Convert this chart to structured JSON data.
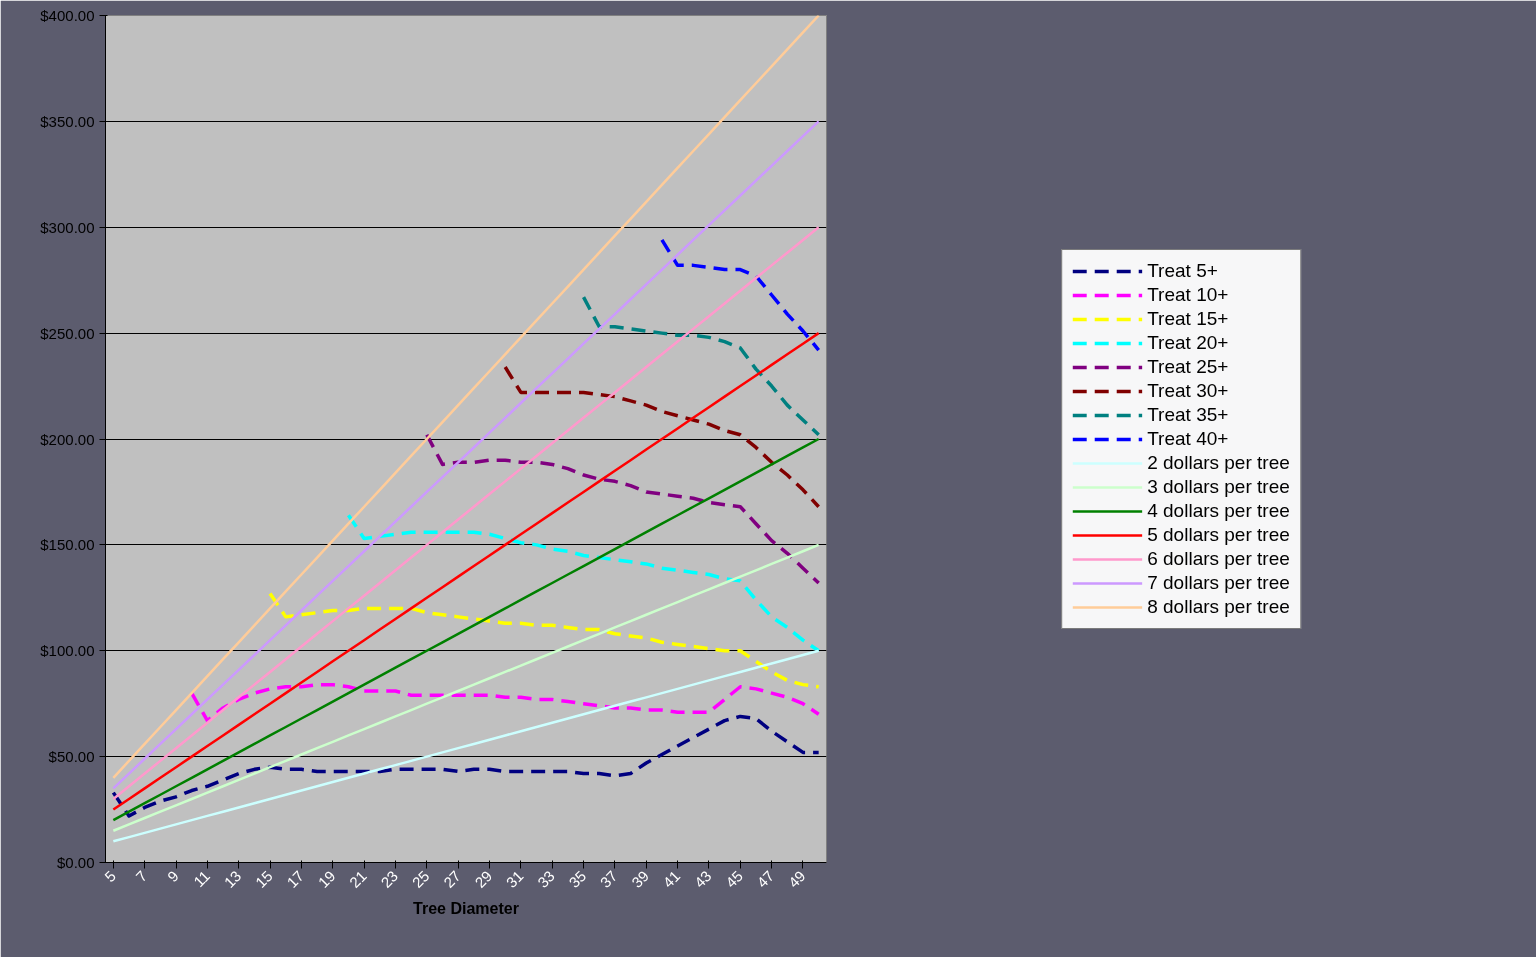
{
  "chart_data": {
    "type": "line",
    "xlabel": "Tree Diameter",
    "categories": [
      "5",
      null,
      "7",
      null,
      "9",
      null,
      "11",
      null,
      "13",
      null,
      "15",
      null,
      "17",
      null,
      "19",
      null,
      "21",
      null,
      "23",
      null,
      "25",
      null,
      "27",
      null,
      "29",
      null,
      "31",
      null,
      "33",
      null,
      "35",
      null,
      "37",
      null,
      "39",
      null,
      "41",
      null,
      "43",
      null,
      "45",
      null,
      "47",
      null,
      "49",
      null
    ],
    "ylim": [
      0,
      400
    ],
    "yticks": [
      {
        "value": 0,
        "label": "$0.00"
      },
      {
        "value": 50,
        "label": "$50.00"
      },
      {
        "value": 100,
        "label": "$100.00"
      },
      {
        "value": 150,
        "label": "$150.00"
      },
      {
        "value": 200,
        "label": "$200.00"
      },
      {
        "value": 250,
        "label": "$250.00"
      },
      {
        "value": 300,
        "label": "$300.00"
      },
      {
        "value": 350,
        "label": "$350.00"
      },
      {
        "value": 400,
        "label": "$400.00"
      }
    ],
    "grid": "y",
    "legend": "right",
    "marker": "none",
    "series": [
      {
        "name": "Treat 5+",
        "color": "#000080",
        "line_style": "dashed",
        "values": [
          33,
          22,
          26,
          29,
          31,
          34,
          36,
          39,
          42,
          44,
          45,
          44,
          44,
          43,
          43,
          43,
          43,
          43,
          44,
          44,
          44,
          44,
          43,
          44,
          44,
          43,
          43,
          43,
          43,
          43,
          42,
          42,
          41,
          42,
          47,
          51,
          55,
          59,
          63,
          67,
          69,
          68,
          62,
          57,
          52,
          52
        ]
      },
      {
        "name": "Treat 10+",
        "color": "#ff00ff",
        "line_style": "dashed",
        "values": [
          null,
          null,
          null,
          null,
          null,
          80,
          67,
          73,
          77,
          80,
          82,
          83,
          83,
          84,
          84,
          83,
          81,
          81,
          81,
          79,
          79,
          79,
          79,
          79,
          79,
          78,
          78,
          77,
          77,
          76,
          75,
          74,
          73,
          73,
          72,
          72,
          71,
          71,
          71,
          77,
          83,
          82,
          80,
          78,
          75,
          70
        ]
      },
      {
        "name": "Treat 15+",
        "color": "#ffff00",
        "line_style": "dashed",
        "values": [
          null,
          null,
          null,
          null,
          null,
          null,
          null,
          null,
          null,
          null,
          127,
          116,
          117,
          118,
          119,
          119,
          120,
          120,
          120,
          120,
          118,
          117,
          116,
          115,
          114,
          113,
          113,
          112,
          112,
          111,
          110,
          110,
          108,
          107,
          106,
          104,
          103,
          102,
          101,
          100,
          100,
          95,
          90,
          86,
          84,
          83
        ]
      },
      {
        "name": "Treat 20+",
        "color": "#00ffff",
        "line_style": "dashed",
        "values": [
          null,
          null,
          null,
          null,
          null,
          null,
          null,
          null,
          null,
          null,
          null,
          null,
          null,
          null,
          null,
          164,
          153,
          154,
          155,
          156,
          156,
          156,
          156,
          156,
          155,
          153,
          151,
          150,
          148,
          147,
          145,
          144,
          143,
          142,
          141,
          139,
          138,
          137,
          136,
          134,
          133,
          124,
          116,
          111,
          105,
          100
        ]
      },
      {
        "name": "Treat 25+",
        "color": "#800080",
        "line_style": "dashed",
        "values": [
          null,
          null,
          null,
          null,
          null,
          null,
          null,
          null,
          null,
          null,
          null,
          null,
          null,
          null,
          null,
          null,
          null,
          null,
          null,
          null,
          202,
          188,
          189,
          189,
          190,
          190,
          189,
          189,
          188,
          186,
          183,
          181,
          180,
          178,
          175,
          174,
          173,
          172,
          170,
          169,
          168,
          160,
          152,
          146,
          139,
          132
        ]
      },
      {
        "name": "Treat 30+",
        "color": "#800000",
        "line_style": "dashed",
        "values": [
          null,
          null,
          null,
          null,
          null,
          null,
          null,
          null,
          null,
          null,
          null,
          null,
          null,
          null,
          null,
          null,
          null,
          null,
          null,
          null,
          null,
          null,
          null,
          null,
          null,
          234,
          222,
          222,
          222,
          222,
          222,
          221,
          220,
          218,
          216,
          213,
          211,
          209,
          207,
          204,
          202,
          196,
          189,
          183,
          176,
          168
        ]
      },
      {
        "name": "Treat 35+",
        "color": "#008080",
        "line_style": "dashed",
        "values": [
          null,
          null,
          null,
          null,
          null,
          null,
          null,
          null,
          null,
          null,
          null,
          null,
          null,
          null,
          null,
          null,
          null,
          null,
          null,
          null,
          null,
          null,
          null,
          null,
          null,
          null,
          null,
          null,
          null,
          null,
          267,
          253,
          253,
          252,
          251,
          250,
          249,
          249,
          248,
          246,
          243,
          233,
          225,
          216,
          209,
          202
        ]
      },
      {
        "name": "Treat 40+",
        "color": "#0000ff",
        "line_style": "dashed",
        "values": [
          null,
          null,
          null,
          null,
          null,
          null,
          null,
          null,
          null,
          null,
          null,
          null,
          null,
          null,
          null,
          null,
          null,
          null,
          null,
          null,
          null,
          null,
          null,
          null,
          null,
          null,
          null,
          null,
          null,
          null,
          null,
          null,
          null,
          null,
          null,
          294,
          282,
          282,
          281,
          280,
          280,
          277,
          268,
          259,
          251,
          242
        ]
      },
      {
        "name": "2 dollars per tree",
        "color": "#ccffff",
        "line_style": "solid",
        "values": [
          10,
          12,
          14,
          16,
          18,
          20,
          22,
          24,
          26,
          28,
          30,
          32,
          34,
          36,
          38,
          40,
          42,
          44,
          46,
          48,
          50,
          52,
          54,
          56,
          58,
          60,
          62,
          64,
          66,
          68,
          70,
          72,
          74,
          76,
          78,
          80,
          82,
          84,
          86,
          88,
          90,
          92,
          94,
          96,
          98,
          100
        ]
      },
      {
        "name": "3 dollars per tree",
        "color": "#ccffcc",
        "line_style": "solid",
        "values": [
          15,
          18,
          21,
          24,
          27,
          30,
          33,
          36,
          39,
          42,
          45,
          48,
          51,
          54,
          57,
          60,
          63,
          66,
          69,
          72,
          75,
          78,
          81,
          84,
          87,
          90,
          93,
          96,
          99,
          102,
          105,
          108,
          111,
          114,
          117,
          120,
          123,
          126,
          129,
          132,
          135,
          138,
          141,
          144,
          147,
          150
        ]
      },
      {
        "name": "4 dollars per tree",
        "color": "#008000",
        "line_style": "solid",
        "values": [
          20,
          24,
          28,
          32,
          36,
          40,
          44,
          48,
          52,
          56,
          60,
          64,
          68,
          72,
          76,
          80,
          84,
          88,
          92,
          96,
          100,
          104,
          108,
          112,
          116,
          120,
          124,
          128,
          132,
          136,
          140,
          144,
          148,
          152,
          156,
          160,
          164,
          168,
          172,
          176,
          180,
          184,
          188,
          192,
          196,
          200
        ]
      },
      {
        "name": "5 dollars per tree",
        "color": "#ff0000",
        "line_style": "solid",
        "values": [
          25,
          30,
          35,
          40,
          45,
          50,
          55,
          60,
          65,
          70,
          75,
          80,
          85,
          90,
          95,
          100,
          105,
          110,
          115,
          120,
          125,
          130,
          135,
          140,
          145,
          150,
          155,
          160,
          165,
          170,
          175,
          180,
          185,
          190,
          195,
          200,
          205,
          210,
          215,
          220,
          225,
          230,
          235,
          240,
          245,
          250
        ]
      },
      {
        "name": "6 dollars per tree",
        "color": "#ff99cc",
        "line_style": "solid",
        "values": [
          30,
          36,
          42,
          48,
          54,
          60,
          66,
          72,
          78,
          84,
          90,
          96,
          102,
          108,
          114,
          120,
          126,
          132,
          138,
          144,
          150,
          156,
          162,
          168,
          174,
          180,
          186,
          192,
          198,
          204,
          210,
          216,
          222,
          228,
          234,
          240,
          246,
          252,
          258,
          264,
          270,
          276,
          282,
          288,
          294,
          300
        ]
      },
      {
        "name": "7 dollars per tree",
        "color": "#cc99ff",
        "line_style": "solid",
        "values": [
          35,
          42,
          49,
          56,
          63,
          70,
          77,
          84,
          91,
          98,
          105,
          112,
          119,
          126,
          133,
          140,
          147,
          154,
          161,
          168,
          175,
          182,
          189,
          196,
          203,
          210,
          217,
          224,
          231,
          238,
          245,
          252,
          259,
          266,
          273,
          280,
          287,
          294,
          301,
          308,
          315,
          322,
          329,
          336,
          343,
          350
        ]
      },
      {
        "name": "8 dollars per tree",
        "color": "#ffcc99",
        "line_style": "solid",
        "values": [
          40,
          48,
          56,
          64,
          72,
          80,
          88,
          96,
          104,
          112,
          120,
          128,
          136,
          144,
          152,
          160,
          168,
          176,
          184,
          192,
          200,
          208,
          216,
          224,
          232,
          240,
          248,
          256,
          264,
          272,
          280,
          288,
          296,
          304,
          312,
          320,
          328,
          336,
          344,
          352,
          360,
          368,
          376,
          384,
          392,
          400
        ]
      }
    ]
  }
}
